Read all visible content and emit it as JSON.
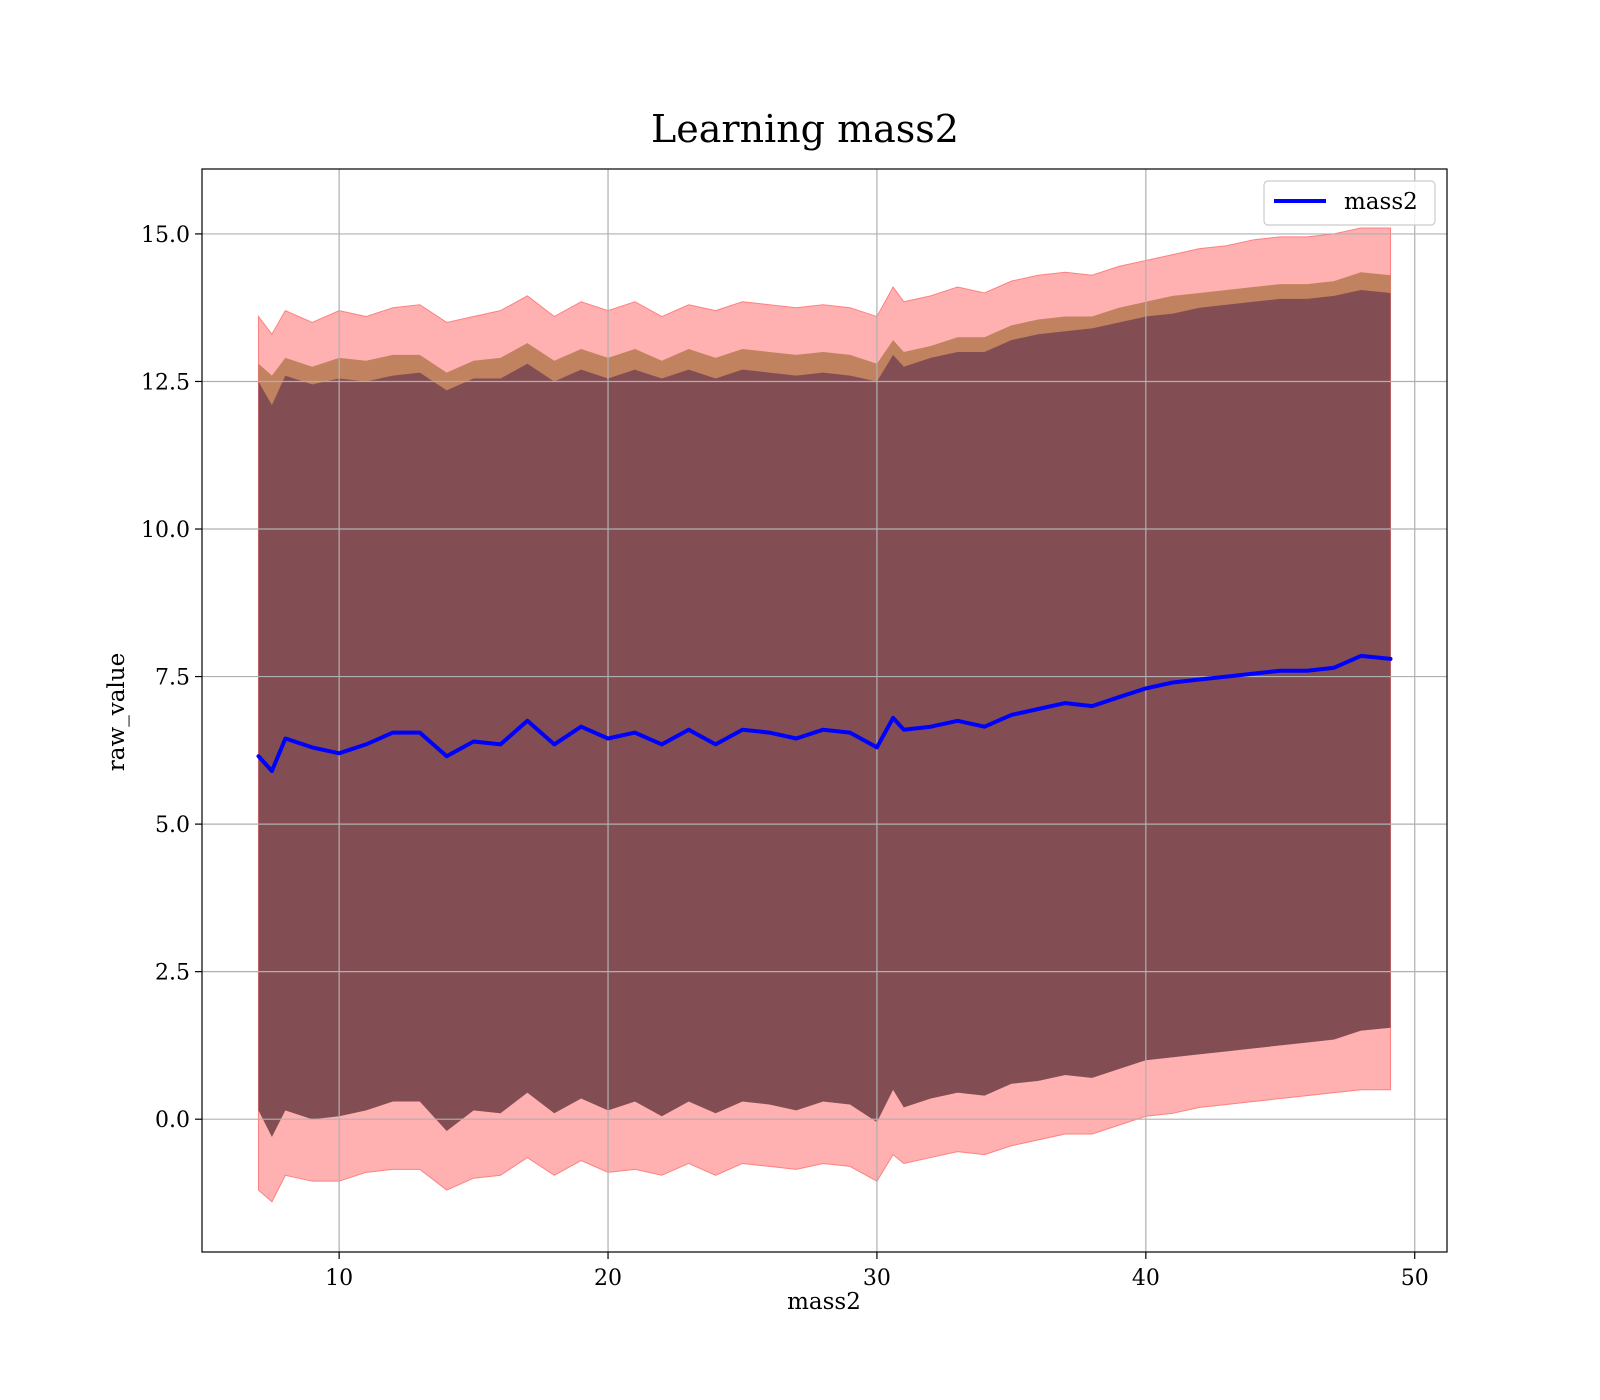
{
  "chart_data": {
    "type": "line",
    "title": "Learning mass2",
    "xlabel": "mass2",
    "ylabel": "raw_value",
    "xlim": [
      4.9,
      51.2
    ],
    "ylim": [
      -2.25,
      16.1
    ],
    "xticks": [
      10,
      20,
      30,
      40,
      50
    ],
    "yticks": [
      0.0,
      2.5,
      5.0,
      7.5,
      10.0,
      12.5,
      15.0
    ],
    "xtick_labels": [
      "10",
      "20",
      "30",
      "40",
      "50"
    ],
    "ytick_labels": [
      "0.0",
      "2.5",
      "5.0",
      "7.5",
      "10.0",
      "12.5",
      "15.0"
    ],
    "grid": true,
    "legend_position": "top-right",
    "colors": {
      "line": "#0000ff",
      "band_outer": "#ff8080",
      "band_middle": "#a87040",
      "band_inner": "#6a3a50"
    },
    "x": [
      7.0,
      7.5,
      8.0,
      9.0,
      10.0,
      11.0,
      12.0,
      13.0,
      14.0,
      15.0,
      16.0,
      17.0,
      18.0,
      19.0,
      20.0,
      21.0,
      22.0,
      23.0,
      24.0,
      25.0,
      26.0,
      27.0,
      28.0,
      29.0,
      30.0,
      30.6,
      31.0,
      32.0,
      33.0,
      34.0,
      35.0,
      36.0,
      37.0,
      38.0,
      39.0,
      40.0,
      41.0,
      42.0,
      43.0,
      44.0,
      45.0,
      46.0,
      47.0,
      48.0,
      49.1
    ],
    "series": [
      {
        "name": "mass2",
        "values": [
          6.15,
          5.9,
          6.45,
          6.3,
          6.2,
          6.35,
          6.55,
          6.55,
          6.15,
          6.4,
          6.35,
          6.75,
          6.35,
          6.65,
          6.45,
          6.55,
          6.35,
          6.6,
          6.35,
          6.6,
          6.55,
          6.45,
          6.6,
          6.55,
          6.3,
          6.8,
          6.6,
          6.65,
          6.75,
          6.65,
          6.85,
          6.95,
          7.05,
          7.0,
          7.15,
          7.3,
          7.4,
          7.45,
          7.5,
          7.55,
          7.6,
          7.6,
          7.65,
          7.85,
          7.8
        ]
      }
    ],
    "bands": [
      {
        "upper": [
          13.6,
          13.3,
          13.7,
          13.5,
          13.7,
          13.6,
          13.75,
          13.8,
          13.5,
          13.6,
          13.7,
          13.95,
          13.6,
          13.85,
          13.7,
          13.85,
          13.6,
          13.8,
          13.7,
          13.85,
          13.8,
          13.75,
          13.8,
          13.75,
          13.6,
          14.1,
          13.85,
          13.95,
          14.1,
          14.0,
          14.2,
          14.3,
          14.35,
          14.3,
          14.45,
          14.55,
          14.65,
          14.75,
          14.8,
          14.9,
          14.95,
          14.95,
          15.0,
          15.1,
          15.1
        ],
        "lower": [
          -1.2,
          -1.4,
          -0.95,
          -1.05,
          -1.05,
          -0.9,
          -0.85,
          -0.85,
          -1.2,
          -1.0,
          -0.95,
          -0.65,
          -0.95,
          -0.7,
          -0.9,
          -0.85,
          -0.95,
          -0.75,
          -0.95,
          -0.75,
          -0.8,
          -0.85,
          -0.75,
          -0.8,
          -1.05,
          -0.6,
          -0.75,
          -0.65,
          -0.55,
          -0.6,
          -0.45,
          -0.35,
          -0.25,
          -0.25,
          -0.1,
          0.05,
          0.1,
          0.2,
          0.25,
          0.3,
          0.35,
          0.4,
          0.45,
          0.5,
          0.5
        ]
      },
      {
        "upper": [
          12.8,
          12.6,
          12.9,
          12.75,
          12.9,
          12.85,
          12.95,
          12.95,
          12.65,
          12.85,
          12.9,
          13.15,
          12.85,
          13.05,
          12.9,
          13.05,
          12.85,
          13.05,
          12.9,
          13.05,
          13.0,
          12.95,
          13.0,
          12.95,
          12.8,
          13.2,
          13.0,
          13.1,
          13.25,
          13.25,
          13.45,
          13.55,
          13.6,
          13.6,
          13.75,
          13.85,
          13.95,
          14.0,
          14.05,
          14.1,
          14.15,
          14.15,
          14.2,
          14.35,
          14.3
        ]
      },
      {
        "upper": [
          12.5,
          12.1,
          12.6,
          12.45,
          12.55,
          12.5,
          12.6,
          12.65,
          12.35,
          12.55,
          12.55,
          12.8,
          12.5,
          12.7,
          12.55,
          12.7,
          12.55,
          12.7,
          12.55,
          12.7,
          12.65,
          12.6,
          12.65,
          12.6,
          12.5,
          12.95,
          12.75,
          12.9,
          13.0,
          13.0,
          13.2,
          13.3,
          13.35,
          13.4,
          13.5,
          13.6,
          13.65,
          13.75,
          13.8,
          13.85,
          13.9,
          13.9,
          13.95,
          14.05,
          14.0
        ],
        "lower": [
          0.15,
          -0.3,
          0.15,
          0.0,
          0.05,
          0.15,
          0.3,
          0.3,
          -0.2,
          0.15,
          0.1,
          0.45,
          0.1,
          0.35,
          0.15,
          0.3,
          0.05,
          0.3,
          0.1,
          0.3,
          0.25,
          0.15,
          0.3,
          0.25,
          -0.05,
          0.5,
          0.2,
          0.35,
          0.45,
          0.4,
          0.6,
          0.65,
          0.75,
          0.7,
          0.85,
          1.0,
          1.05,
          1.1,
          1.15,
          1.2,
          1.25,
          1.3,
          1.35,
          1.5,
          1.55
        ]
      }
    ]
  }
}
